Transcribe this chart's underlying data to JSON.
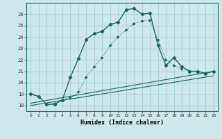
{
  "xlabel": "Humidex (Indice chaleur)",
  "bg_color": "#cce8e8",
  "grid_color": "#aacccc",
  "line_color": "#1a6b5a",
  "xlim": [
    -0.5,
    23.5
  ],
  "ylim": [
    17.5,
    27.0
  ],
  "xticks": [
    0,
    1,
    2,
    3,
    4,
    5,
    6,
    7,
    8,
    9,
    10,
    11,
    12,
    13,
    14,
    15,
    16,
    17,
    18,
    19,
    20,
    21,
    22,
    23
  ],
  "yticks": [
    18,
    19,
    20,
    21,
    22,
    23,
    24,
    25,
    26
  ],
  "main_x": [
    0,
    1,
    2,
    3,
    4,
    5,
    6,
    7,
    8,
    9,
    10,
    11,
    12,
    13,
    14,
    15,
    16,
    17,
    18,
    19,
    20,
    21,
    22,
    23
  ],
  "main_y": [
    19.0,
    18.8,
    18.1,
    18.1,
    18.5,
    20.5,
    22.1,
    23.8,
    24.3,
    24.5,
    25.1,
    25.3,
    26.4,
    26.5,
    26.0,
    26.1,
    23.3,
    21.5,
    22.2,
    21.4,
    21.0,
    21.0,
    20.8,
    21.0
  ],
  "line2_x": [
    0,
    23
  ],
  "line2_y": [
    18.2,
    21.0
  ],
  "line3_x": [
    0,
    23
  ],
  "line3_y": [
    18.0,
    20.6
  ],
  "dotted_x": [
    0,
    1,
    2,
    3,
    4,
    5,
    6,
    7,
    8,
    9,
    10,
    11,
    12,
    13,
    14,
    15,
    16,
    17,
    18,
    19,
    20,
    21,
    22,
    23
  ],
  "dotted_y": [
    19.0,
    18.8,
    18.1,
    18.2,
    18.5,
    18.7,
    19.2,
    20.5,
    21.4,
    22.2,
    23.3,
    24.0,
    24.6,
    25.2,
    25.4,
    25.5,
    23.8,
    22.0,
    21.5,
    21.2,
    21.0,
    21.0,
    20.8,
    21.0
  ]
}
